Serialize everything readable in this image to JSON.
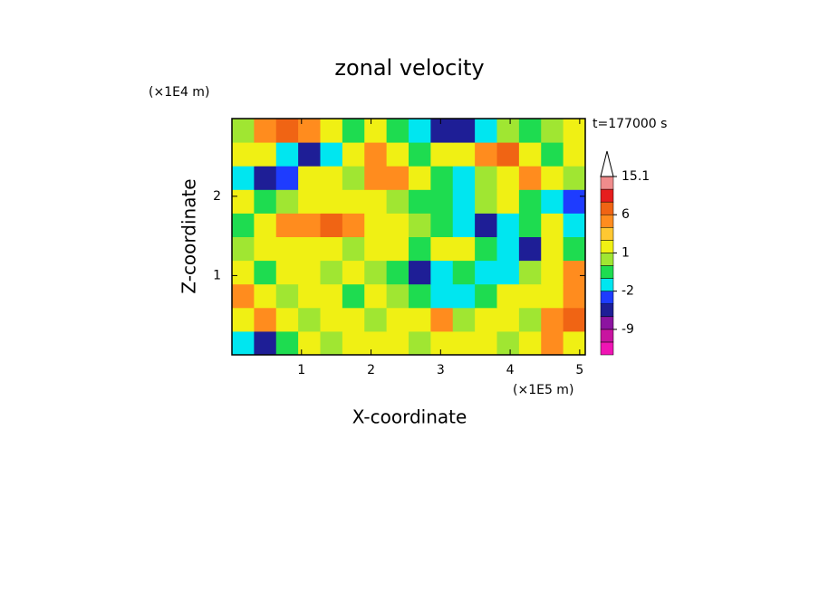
{
  "chart_data": {
    "type": "contour",
    "title": "zonal velocity",
    "y_unit": "(×1E4 m)",
    "x_unit": "(×1E5 m)",
    "annotation": "t=177000 s",
    "xlabel": "X-coordinate",
    "ylabel": "Z-coordinate",
    "xlim": [
      0,
      5.08
    ],
    "ylim": [
      0,
      2.98
    ],
    "xticks": [
      1,
      2,
      3,
      4,
      5
    ],
    "yticks": [
      1,
      2
    ],
    "z": [
      [
        -1.5,
        -5,
        -0.5,
        1.5,
        0.5,
        1.5,
        1.5,
        1.5,
        0.5,
        1.5,
        1.5,
        1.5,
        0.5,
        1.5,
        5,
        1.5
      ],
      [
        1.5,
        5,
        1.5,
        0.5,
        1.5,
        1.5,
        0.5,
        1.5,
        1.5,
        5,
        0.5,
        1.5,
        1.5,
        0.5,
        5,
        7
      ],
      [
        5,
        1.5,
        0.5,
        1.5,
        1.5,
        -0.5,
        1.5,
        0.5,
        -0.5,
        -1.5,
        -1.5,
        -0.5,
        1.5,
        1.5,
        1.5,
        5
      ],
      [
        1.5,
        -0.5,
        1.5,
        1.5,
        0.5,
        1.5,
        0.5,
        -0.5,
        -5,
        -1.5,
        -0.5,
        -1.5,
        -1.5,
        0.5,
        1.5,
        5
      ],
      [
        0.5,
        1.5,
        1.5,
        1.5,
        1.5,
        0.5,
        1.5,
        1.5,
        -0.5,
        1.5,
        1.5,
        -0.5,
        -1.5,
        -5,
        1.5,
        -0.5
      ],
      [
        -0.5,
        1.5,
        5,
        5,
        7,
        5,
        1.5,
        1.5,
        0.5,
        -0.5,
        -1.5,
        -5,
        -1.5,
        -0.5,
        1.5,
        -1.5
      ],
      [
        1.5,
        -0.5,
        0.5,
        1.5,
        1.5,
        1.5,
        1.5,
        0.5,
        -0.5,
        -0.5,
        -1.5,
        0.5,
        1.5,
        -0.5,
        -1.5,
        -3
      ],
      [
        -1.5,
        -5,
        -3,
        1.5,
        1.5,
        0.5,
        5,
        5,
        1.5,
        -0.5,
        -1.5,
        0.5,
        1.5,
        5,
        1.5,
        0.5
      ],
      [
        1.5,
        1.5,
        -1.5,
        -5,
        -1.5,
        1.5,
        5,
        1.5,
        -0.5,
        1.5,
        1.5,
        5,
        7,
        1.5,
        -0.5,
        1.5
      ],
      [
        0.5,
        5,
        7,
        5,
        1.5,
        -0.5,
        1.5,
        -0.5,
        -1.5,
        -5,
        -5,
        -1.5,
        0.5,
        -0.5,
        0.5,
        1.5
      ]
    ],
    "levels": [
      -16,
      -12,
      -9,
      -6,
      -4,
      -2,
      -1,
      0,
      1,
      2,
      4,
      6,
      9,
      12,
      15.1
    ],
    "colors": [
      "#f014b4",
      "#c814a0",
      "#8c14a0",
      "#1e1e96",
      "#1e3cff",
      "#00e6f0",
      "#1edc50",
      "#a0e632",
      "#f0f014",
      "#ffc832",
      "#ff8c1e",
      "#f06414",
      "#e61e1e",
      "#f08c8c"
    ],
    "cticks": [
      -9,
      -2,
      1,
      6,
      15.1
    ]
  }
}
